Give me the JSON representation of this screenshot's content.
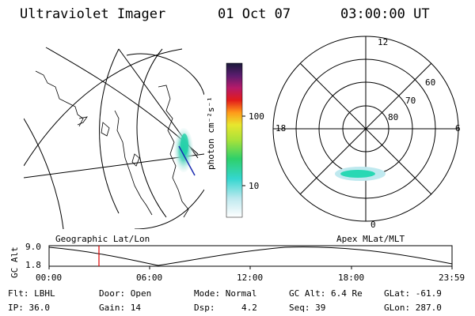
{
  "header": {
    "instrument": "Ultraviolet Imager",
    "date": "01 Oct 07",
    "time": "03:00:00 UT"
  },
  "colorbar": {
    "unit_label": "photon cm⁻²s⁻¹",
    "ticks": [
      "100",
      "10"
    ]
  },
  "polar_plot": {
    "mlt_labels": [
      "12",
      "18",
      "6",
      "0"
    ],
    "mlat_labels": [
      "60",
      "70",
      "80"
    ]
  },
  "map_labels": {
    "left": "Geographic Lat/Lon",
    "right": "Apex MLat/MLT"
  },
  "altitude_plot": {
    "ylabel": "GC Alt",
    "yticks": [
      "9.0",
      "1.8"
    ],
    "xticks": [
      "00:00",
      "06:00",
      "12:00",
      "18:00",
      "23:59"
    ]
  },
  "info": {
    "filter": "Flt: LBHL",
    "door": "Door: Open",
    "mode": "Mode: Normal",
    "gc_alt": "GC Alt: 6.4 Re",
    "glat": "GLat: -61.9",
    "ip": "IP: 36.0",
    "gain": "Gain: 14",
    "dsp_label": "Dsp:",
    "dsp_value": "4.2",
    "seq": "Seq: 39",
    "glon": "GLon: 287.0"
  },
  "colors": {
    "background": "#ffffff",
    "foreground": "#000000",
    "marker": "#dd0000",
    "meridian": "#1a2bb0"
  }
}
